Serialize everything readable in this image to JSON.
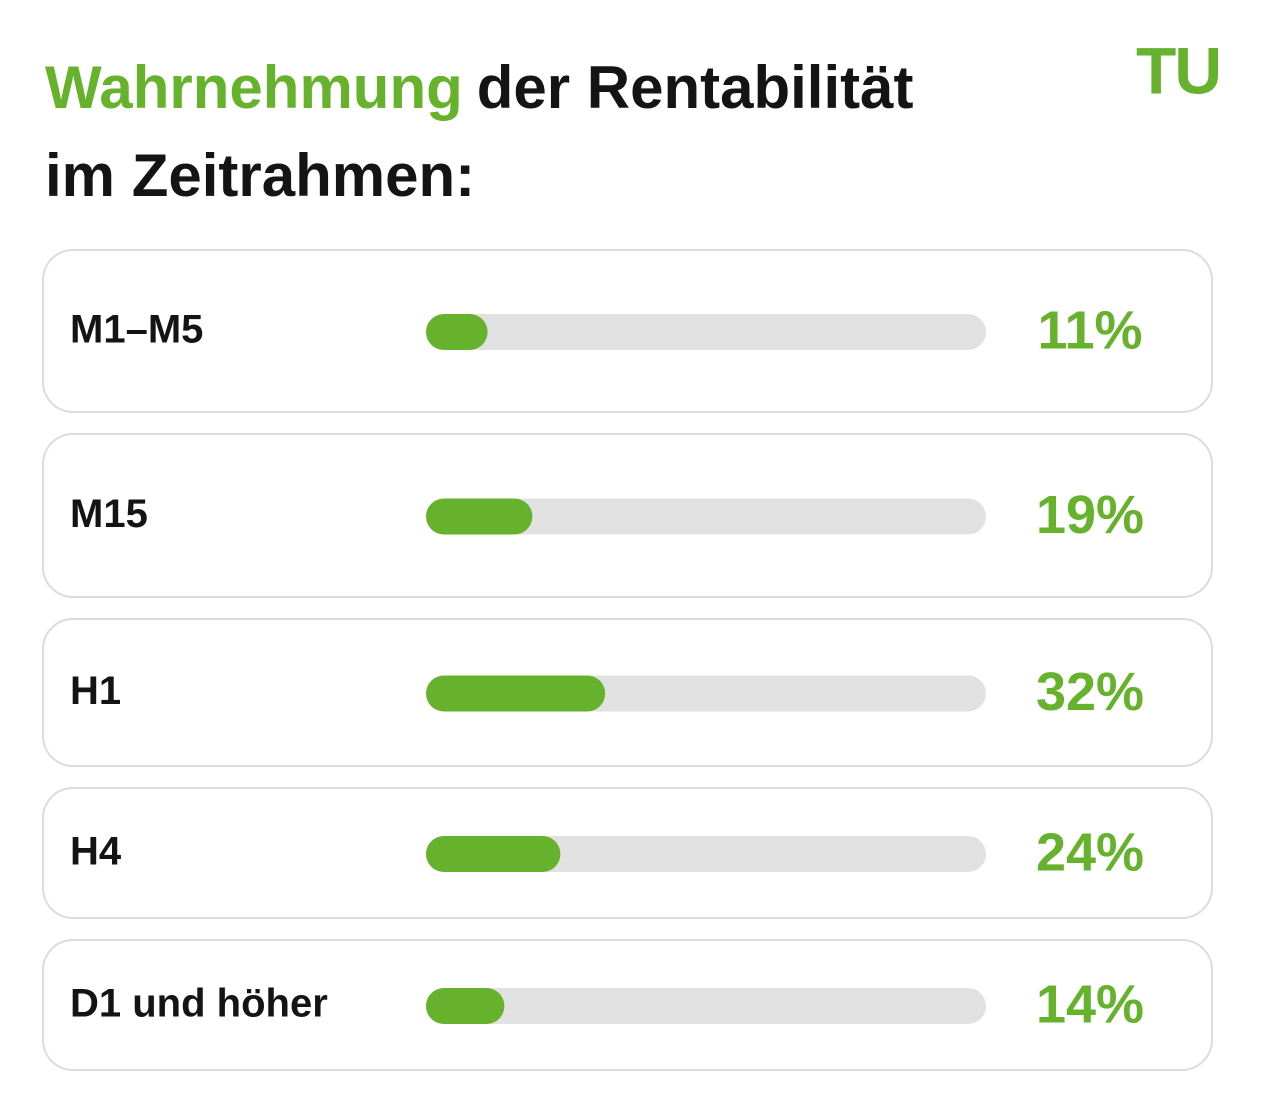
{
  "logo": "TU",
  "chart_data": {
    "type": "bar",
    "orientation": "horizontal",
    "title": [
      "Wahrnehmung",
      "der Rentabilität",
      "im Zeitrahmen:"
    ],
    "categories": [
      "M1–M5",
      "M15",
      "H1",
      "H4",
      "D1 und höher"
    ],
    "values": [
      11,
      19,
      32,
      24,
      14
    ],
    "value_labels": [
      "11%",
      "19%",
      "32%",
      "24%",
      "14%"
    ],
    "xlim": [
      0,
      100
    ],
    "color": "#66b22c",
    "track_color": "#e1e1e1"
  }
}
